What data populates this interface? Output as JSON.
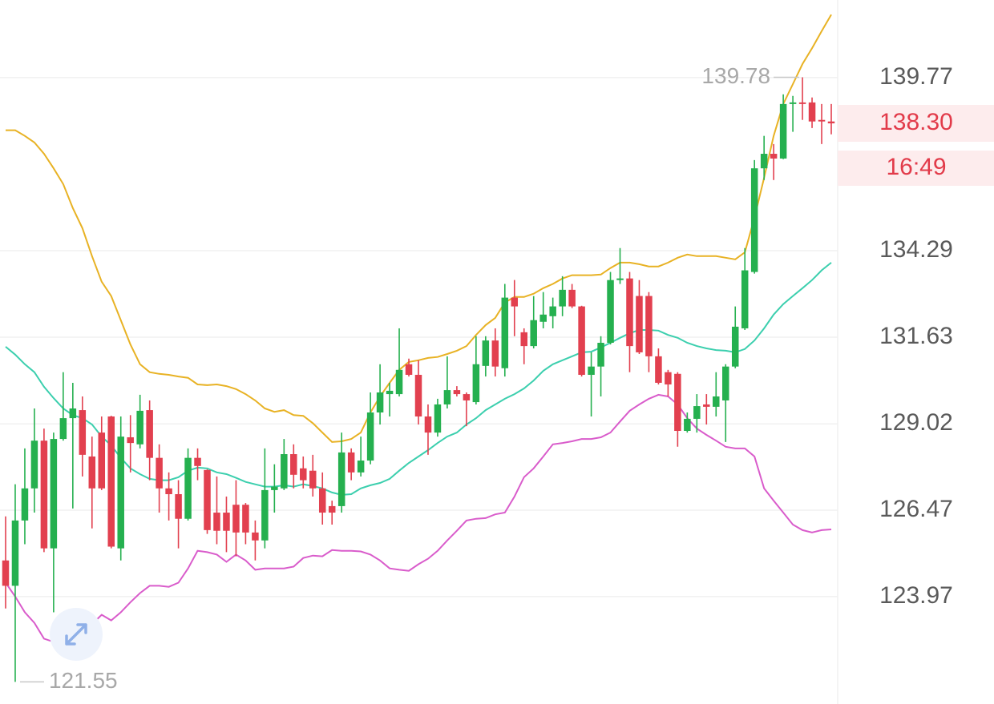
{
  "chart_data": {
    "type": "candlestick",
    "log_scale": true,
    "grid": true,
    "up_color": "#25b04f",
    "down_color": "#e2404f",
    "ylim": [
      120.93,
      142.3
    ],
    "yticks": [
      139.77,
      134.29,
      131.63,
      129.02,
      126.47,
      123.97
    ],
    "open": [
      125.01,
      124.28,
      126.17,
      127.11,
      128.52,
      125.36,
      128.57,
      129.19,
      129.43,
      128.05,
      128.76,
      129.24,
      125.36,
      128.62,
      128.41,
      129.43,
      128.01,
      127.11,
      126.94,
      126.22,
      128.01,
      127.65,
      126.4,
      126.4,
      126.63,
      126.63,
      125.82,
      125.59,
      127.06,
      127.11,
      128.12,
      127.7,
      127.63,
      127.11,
      126.59,
      126.59,
      128.17,
      127.58,
      127.93,
      129.36,
      129.91,
      129.91,
      130.81,
      130.49,
      129.24,
      128.76,
      129.6,
      130.03,
      129.91,
      129.67,
      130.76,
      131.53,
      130.69,
      132.84,
      131.78,
      131.36,
      132.1,
      132.27,
      132.57,
      133.08,
      132.57,
      130.49,
      130.74,
      131.46,
      133.38,
      133.43,
      132.89,
      132.89,
      131.05,
      130.57,
      130.52,
      128.81,
      129.17,
      129.6,
      129.53,
      129.72,
      130.74,
      131.9,
      133.63,
      136.87,
      137.33,
      137.18,
      138.92,
      138.97,
      138.97,
      138.41,
      138.36
    ],
    "high": [
      126.29,
      127.23,
      128.29,
      129.48,
      128.88,
      128.76,
      130.57,
      130.25,
      129.84,
      128.64,
      129.24,
      129.26,
      129.24,
      129.28,
      129.89,
      129.72,
      128.41,
      127.58,
      127.35,
      128.29,
      128.29,
      127.67,
      127.46,
      126.87,
      127.35,
      126.68,
      126.17,
      128.29,
      127.82,
      128.57,
      128.41,
      128.05,
      128.1,
      127.58,
      126.75,
      128.76,
      128.29,
      128.64,
      129.96,
      130.81,
      130.25,
      131.9,
      130.98,
      130.93,
      129.6,
      129.77,
      131.05,
      130.15,
      129.96,
      131.66,
      131.66,
      131.9,
      133.26,
      133.38,
      131.9,
      132.89,
      133.01,
      132.84,
      133.5,
      133.26,
      132.59,
      131.17,
      131.66,
      133.63,
      134.37,
      133.63,
      133.38,
      133.01,
      131.29,
      130.64,
      130.57,
      129.36,
      129.91,
      129.91,
      130.57,
      130.81,
      132.57,
      134.37,
      137.13,
      137.9,
      137.64,
      139.23,
      139.18,
      139.78,
      139.13,
      138.92,
      138.92
    ],
    "low": [
      123.63,
      121.55,
      125.48,
      126.4,
      125.25,
      123.52,
      128.52,
      126.52,
      127.46,
      125.94,
      127.06,
      125.36,
      125.01,
      127.58,
      128.29,
      127.35,
      126.4,
      126.17,
      125.36,
      126.17,
      127.35,
      125.78,
      125.48,
      125.25,
      125.13,
      125.48,
      125.01,
      125.36,
      126.4,
      127.06,
      127.11,
      127.11,
      126.87,
      126.05,
      126.05,
      126.4,
      127.35,
      127.46,
      127.82,
      129.0,
      129.24,
      129.84,
      130.44,
      129.0,
      128.1,
      128.64,
      129.48,
      129.84,
      128.95,
      129.6,
      130.44,
      130.44,
      130.44,
      131.66,
      130.81,
      131.29,
      131.9,
      131.9,
      132.27,
      132.52,
      130.44,
      129.24,
      129.84,
      131.41,
      133.26,
      130.57,
      131.12,
      130.57,
      130.2,
      129.84,
      128.34,
      128.76,
      128.76,
      129.0,
      129.24,
      128.48,
      130.69,
      131.85,
      133.58,
      136.5,
      136.5,
      137.16,
      138.03,
      138.41,
      138.15,
      137.64,
      137.95
    ],
    "close": [
      124.28,
      126.17,
      127.11,
      128.52,
      125.36,
      128.57,
      129.19,
      129.48,
      128.1,
      127.11,
      127.11,
      125.41,
      128.64,
      128.45,
      129.41,
      128.01,
      127.11,
      126.94,
      126.22,
      128.01,
      127.77,
      125.89,
      125.87,
      125.87,
      125.82,
      125.82,
      125.59,
      127.06,
      127.16,
      128.12,
      127.51,
      127.35,
      127.11,
      126.4,
      126.4,
      128.17,
      127.58,
      127.93,
      129.36,
      129.96,
      130.01,
      130.64,
      130.49,
      129.24,
      128.76,
      129.6,
      130.03,
      129.91,
      129.72,
      130.81,
      131.53,
      130.74,
      132.84,
      132.57,
      131.36,
      132.15,
      132.32,
      132.57,
      133.08,
      132.57,
      130.49,
      130.74,
      131.46,
      133.38,
      133.43,
      131.36,
      131.17,
      131.05,
      130.25,
      130.2,
      128.81,
      129.17,
      129.55,
      129.53,
      129.84,
      130.74,
      131.95,
      133.68,
      136.87,
      137.33,
      137.18,
      138.92,
      138.97,
      138.92,
      138.36,
      138.36,
      138.3
    ],
    "lines": [
      {
        "color": "#e8b224",
        "values": [
          138.08,
          138.08,
          137.9,
          137.69,
          137.33,
          136.87,
          136.37,
          135.62,
          134.99,
          134.12,
          133.33,
          132.89,
          132.15,
          131.41,
          130.81,
          130.57,
          130.52,
          130.49,
          130.44,
          130.4,
          130.2,
          130.18,
          130.2,
          130.15,
          130.06,
          129.91,
          129.72,
          129.48,
          129.38,
          129.43,
          129.28,
          129.26,
          129.04,
          128.76,
          128.48,
          128.5,
          128.57,
          128.76,
          129.36,
          129.84,
          130.25,
          130.64,
          130.88,
          130.93,
          131.0,
          131.03,
          131.12,
          131.22,
          131.36,
          131.7,
          132.0,
          132.22,
          132.69,
          132.86,
          132.86,
          132.96,
          133.13,
          133.26,
          133.43,
          133.53,
          133.53,
          133.53,
          133.55,
          133.75,
          133.92,
          133.92,
          133.87,
          133.8,
          133.8,
          133.92,
          134.07,
          134.17,
          134.12,
          134.12,
          134.12,
          134.07,
          134.02,
          134.24,
          135.32,
          136.57,
          137.9,
          138.92,
          139.56,
          140.21,
          140.72,
          141.28,
          141.82
        ]
      },
      {
        "color": "#3ccfae",
        "values": [
          131.34,
          131.1,
          130.81,
          130.57,
          130.13,
          129.79,
          129.48,
          129.28,
          129.19,
          129.0,
          128.64,
          128.38,
          128.01,
          127.7,
          127.53,
          127.39,
          127.35,
          127.35,
          127.44,
          127.63,
          127.72,
          127.7,
          127.58,
          127.53,
          127.42,
          127.3,
          127.23,
          127.16,
          127.16,
          127.2,
          127.16,
          127.23,
          127.18,
          127.11,
          126.99,
          126.92,
          126.94,
          127.11,
          127.2,
          127.27,
          127.39,
          127.63,
          127.86,
          128.05,
          128.24,
          128.45,
          128.64,
          128.76,
          129.0,
          129.19,
          129.43,
          129.6,
          129.77,
          129.91,
          130.08,
          130.32,
          130.61,
          130.81,
          130.93,
          131.05,
          131.17,
          131.19,
          131.32,
          131.46,
          131.61,
          131.75,
          131.85,
          131.85,
          131.83,
          131.7,
          131.61,
          131.46,
          131.36,
          131.29,
          131.24,
          131.22,
          131.17,
          131.27,
          131.53,
          131.9,
          132.32,
          132.64,
          132.89,
          133.13,
          133.38,
          133.68,
          133.92
        ]
      },
      {
        "color": "#d95ccb",
        "values": [
          124.37,
          123.97,
          123.52,
          123.22,
          122.77,
          122.68,
          122.68,
          122.95,
          123.06,
          123.18,
          123.45,
          123.29,
          123.52,
          123.81,
          124.07,
          124.28,
          124.28,
          124.25,
          124.37,
          124.78,
          125.29,
          125.25,
          125.18,
          124.97,
          125.18,
          125.01,
          124.74,
          124.78,
          124.78,
          124.78,
          124.83,
          125.08,
          125.15,
          125.13,
          125.31,
          125.29,
          125.29,
          125.27,
          125.18,
          125.01,
          124.78,
          124.74,
          124.71,
          124.9,
          125.06,
          125.29,
          125.59,
          125.87,
          126.17,
          126.22,
          126.24,
          126.35,
          126.4,
          126.87,
          127.44,
          127.7,
          128.05,
          128.41,
          128.45,
          128.5,
          128.57,
          128.57,
          128.62,
          128.76,
          129.09,
          129.41,
          129.6,
          129.77,
          129.89,
          129.84,
          129.6,
          129.19,
          128.88,
          128.69,
          128.52,
          128.34,
          128.29,
          128.29,
          128.05,
          127.11,
          126.75,
          126.4,
          126.05,
          125.89,
          125.82,
          125.89,
          125.91
        ]
      }
    ],
    "high_annotation": 139.78,
    "low_annotation": 121.55,
    "last_price": {
      "value": 138.3,
      "label": "138.30"
    },
    "countdown": "16:49"
  }
}
